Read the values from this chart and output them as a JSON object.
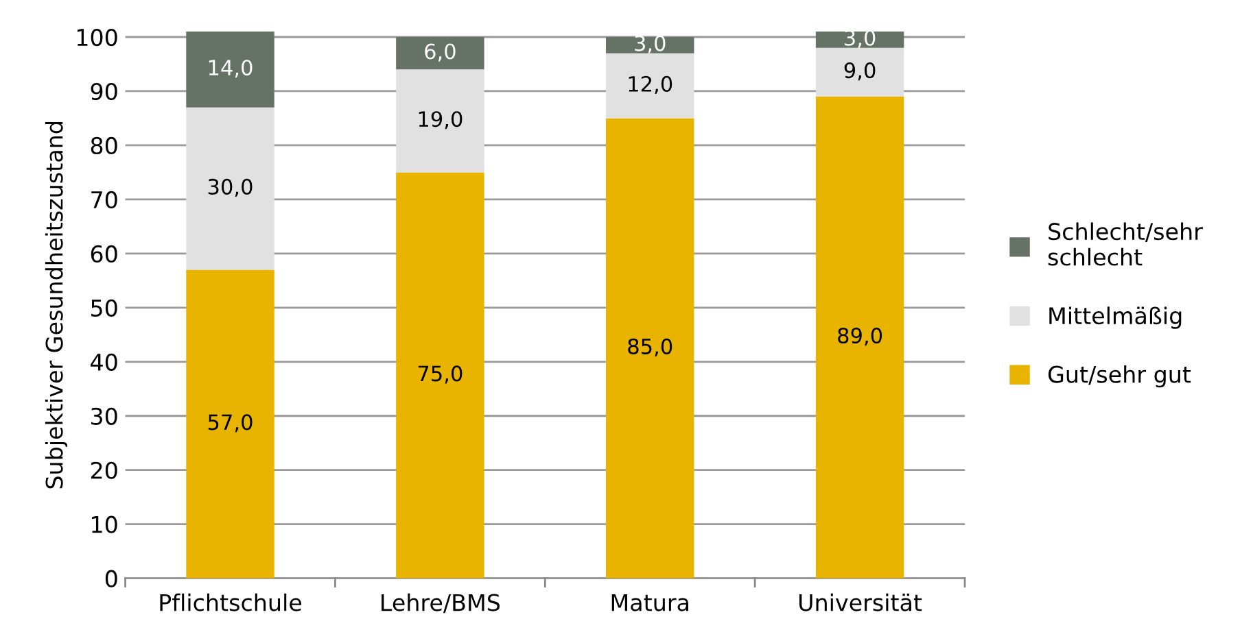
{
  "chart_data": {
    "type": "bar",
    "stacked": true,
    "ylabel": "Subjektiver Gesundheitszustand",
    "categories": [
      "Pflichtschule",
      "Lehre/BMS",
      "Matura",
      "Universität"
    ],
    "series": [
      {
        "name": "Gut/sehr gut",
        "color": "#e8b400",
        "values": [
          57,
          75,
          85,
          89
        ],
        "value_labels": [
          "57,0",
          "75,0",
          "85,0",
          "89,0"
        ]
      },
      {
        "name": "Mittelmäßig",
        "color": "#e0e1e0",
        "values": [
          30,
          19,
          12,
          9
        ],
        "value_labels": [
          "30,0",
          "19,0",
          "12,0",
          "9,0"
        ]
      },
      {
        "name": "Schlecht/sehr\nschlecht",
        "color": "#667266",
        "values": [
          14,
          6,
          3,
          3
        ],
        "value_labels": [
          "14,0",
          "6,0",
          "3,0",
          "3,0"
        ]
      }
    ],
    "ylim": [
      0,
      101
    ],
    "yticks": [
      0,
      10,
      20,
      30,
      40,
      50,
      60,
      70,
      80,
      90,
      100
    ],
    "grid": "y",
    "legend": "right"
  }
}
